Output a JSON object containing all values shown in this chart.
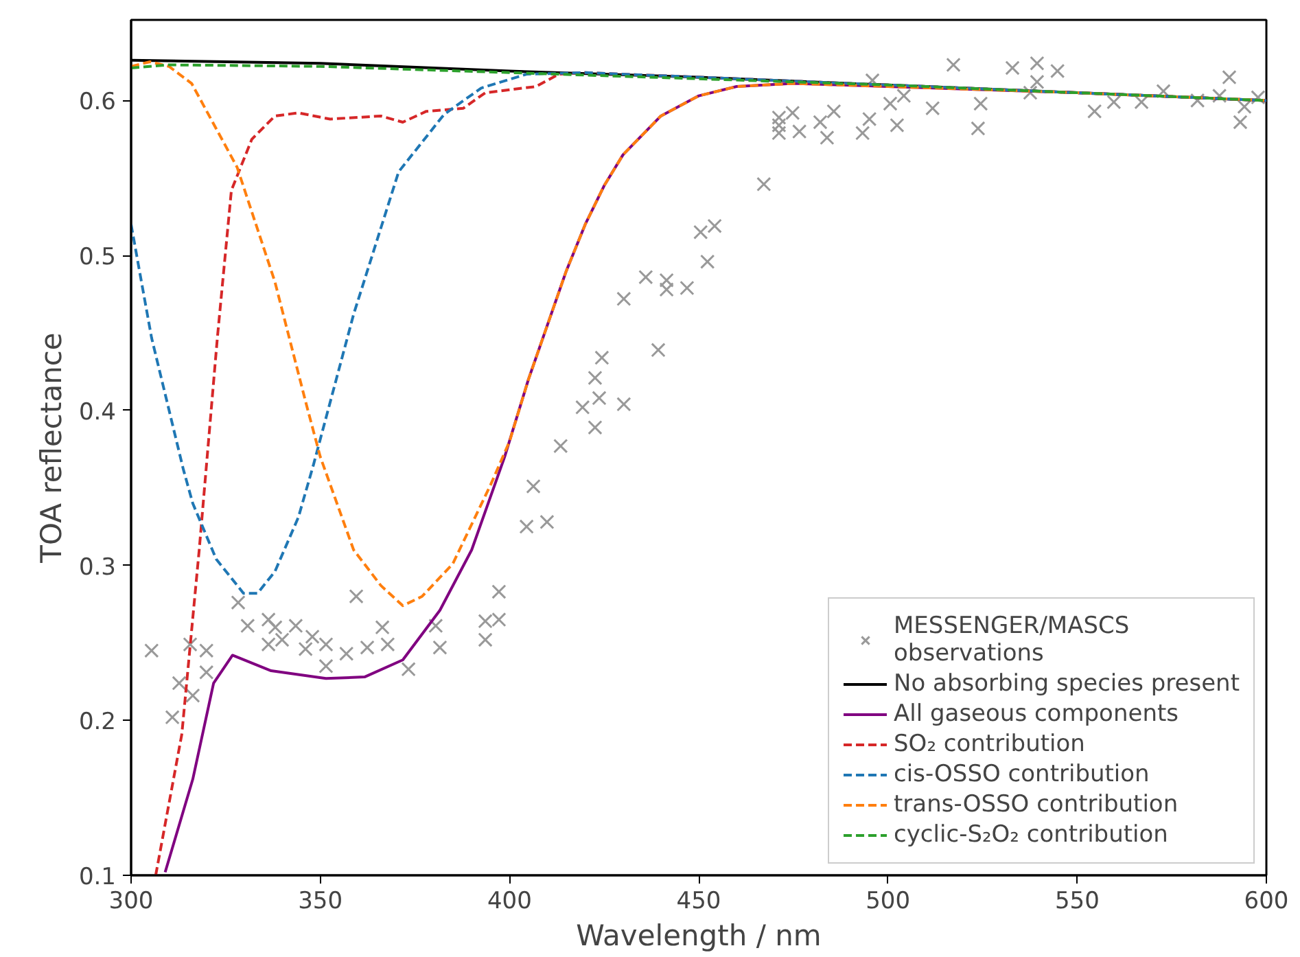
{
  "chart_data": {
    "type": "line",
    "xlabel": "Wavelength / nm",
    "ylabel": "TOA reflectance",
    "xlim": [
      300,
      600
    ],
    "ylim": [
      0.1,
      0.652
    ],
    "xticks": [
      300,
      350,
      400,
      450,
      500,
      550,
      600
    ],
    "yticks": [
      0.1,
      0.2,
      0.3,
      0.4,
      0.5,
      0.6
    ],
    "legend": "bottom right",
    "series": [
      {
        "name": "MESSENGER/MASCS\nobservations",
        "type": "scatter",
        "marker": "cross",
        "color": "#999999",
        "x": [
          305.4,
          310.9,
          312.7,
          315.6,
          316.3,
          319.9,
          319.9,
          328.3,
          330.8,
          336.3,
          336.3,
          338.1,
          339.9,
          343.5,
          346.1,
          347.9,
          351.5,
          351.5,
          356.9,
          359.5,
          362.4,
          366.4,
          367.8,
          373.3,
          380.5,
          381.6,
          393.6,
          393.6,
          397.2,
          397.2,
          404.5,
          406.3,
          409.9,
          413.5,
          419.3,
          422.6,
          423.7,
          422.6,
          424.4,
          430.2,
          430.2,
          436.0,
          439.3,
          441.5,
          441.5,
          446.9,
          452.3,
          450.5,
          454.2,
          467.2,
          471.2,
          471.2,
          471.2,
          474.8,
          476.6,
          482.1,
          483.9,
          485.7,
          493.3,
          495.1,
          495.9,
          500.6,
          502.4,
          504.2,
          511.8,
          517.3,
          523.8,
          524.5,
          532.9,
          537.6,
          539.4,
          539.4,
          544.8,
          554.6,
          559.7,
          567.0,
          572.8,
          581.8,
          587.6,
          590.2,
          593.1,
          594.2,
          597.8
        ],
        "values": [
          0.245,
          0.202,
          0.224,
          0.249,
          0.216,
          0.245,
          0.231,
          0.276,
          0.261,
          0.265,
          0.249,
          0.26,
          0.252,
          0.261,
          0.246,
          0.254,
          0.249,
          0.235,
          0.243,
          0.28,
          0.247,
          0.26,
          0.249,
          0.233,
          0.261,
          0.247,
          0.252,
          0.264,
          0.265,
          0.283,
          0.325,
          0.351,
          0.328,
          0.377,
          0.402,
          0.389,
          0.408,
          0.421,
          0.434,
          0.404,
          0.472,
          0.486,
          0.439,
          0.478,
          0.484,
          0.479,
          0.496,
          0.515,
          0.519,
          0.546,
          0.579,
          0.584,
          0.589,
          0.592,
          0.58,
          0.586,
          0.576,
          0.593,
          0.579,
          0.588,
          0.613,
          0.598,
          0.584,
          0.603,
          0.595,
          0.623,
          0.582,
          0.598,
          0.621,
          0.605,
          0.612,
          0.624,
          0.619,
          0.593,
          0.599,
          0.599,
          0.606,
          0.6,
          0.603,
          0.615,
          0.586,
          0.596,
          0.602
        ]
      },
      {
        "name": "No absorbing species present",
        "line_style": "solid",
        "color": "#000000",
        "x": [
          300,
          350,
          400,
          450,
          500,
          550,
          600
        ],
        "values": [
          0.626,
          0.624,
          0.619,
          0.615,
          0.61,
          0.605,
          0.6
        ]
      },
      {
        "name": "All gaseous components",
        "line_style": "solid",
        "color": "#800080",
        "x": [
          309,
          316.3,
          321.8,
          326.8,
          337,
          351.5,
          361.7,
          371.8,
          381.6,
          390,
          398.7,
          405,
          410,
          415,
          420,
          425,
          430,
          440,
          450,
          460,
          475,
          500,
          550,
          600
        ],
        "values": [
          0.102,
          0.162,
          0.224,
          0.242,
          0.232,
          0.227,
          0.228,
          0.239,
          0.271,
          0.31,
          0.37,
          0.42,
          0.455,
          0.49,
          0.52,
          0.545,
          0.565,
          0.59,
          0.603,
          0.609,
          0.611,
          0.609,
          0.605,
          0.6
        ]
      },
      {
        "name": "SO₂ contribution",
        "line_style": "dashed",
        "color": "#d62728",
        "x": [
          306.5,
          313.4,
          318,
          322.8,
          326.5,
          331.9,
          338,
          344.2,
          352.6,
          366,
          371.8,
          378,
          387.8,
          393.6,
          407,
          413,
          420,
          450,
          500,
          550,
          600
        ],
        "values": [
          0.1,
          0.191,
          0.31,
          0.447,
          0.542,
          0.575,
          0.59,
          0.592,
          0.588,
          0.59,
          0.586,
          0.593,
          0.595,
          0.605,
          0.609,
          0.617,
          0.618,
          0.615,
          0.61,
          0.605,
          0.6
        ]
      },
      {
        "name": "cis-OSSO contribution",
        "line_style": "dashed",
        "color": "#1f77b4",
        "x": [
          300,
          305.4,
          313.8,
          316.3,
          322.5,
          329.7,
          333.4,
          338,
          344.2,
          348.2,
          358.8,
          370.7,
          382.7,
          392.5,
          404.5,
          420,
          450,
          500,
          550,
          600
        ],
        "values": [
          0.52,
          0.447,
          0.362,
          0.34,
          0.304,
          0.282,
          0.282,
          0.296,
          0.331,
          0.365,
          0.462,
          0.554,
          0.591,
          0.608,
          0.617,
          0.618,
          0.615,
          0.61,
          0.605,
          0.6
        ]
      },
      {
        "name": "trans-OSSO contribution",
        "line_style": "dashed",
        "color": "#ff7f0e",
        "x": [
          300,
          305,
          310,
          316,
          328,
          338,
          346.4,
          350,
          358.8,
          366,
          371.8,
          376.9,
          385,
          395,
          400,
          405,
          410,
          415,
          420,
          425,
          430,
          440,
          450,
          460,
          475,
          500,
          550,
          600
        ],
        "values": [
          0.622,
          0.625,
          0.622,
          0.611,
          0.557,
          0.483,
          0.403,
          0.37,
          0.31,
          0.287,
          0.274,
          0.28,
          0.301,
          0.352,
          0.38,
          0.42,
          0.455,
          0.49,
          0.52,
          0.545,
          0.565,
          0.59,
          0.603,
          0.609,
          0.611,
          0.609,
          0.605,
          0.6
        ]
      },
      {
        "name": "cyclic-S₂O₂ contribution",
        "line_style": "dashed",
        "color": "#2ca02c",
        "x": [
          300,
          310,
          350,
          400,
          450,
          500,
          550,
          590,
          600
        ],
        "values": [
          0.621,
          0.623,
          0.622,
          0.618,
          0.614,
          0.61,
          0.605,
          0.601,
          0.6
        ]
      }
    ]
  }
}
